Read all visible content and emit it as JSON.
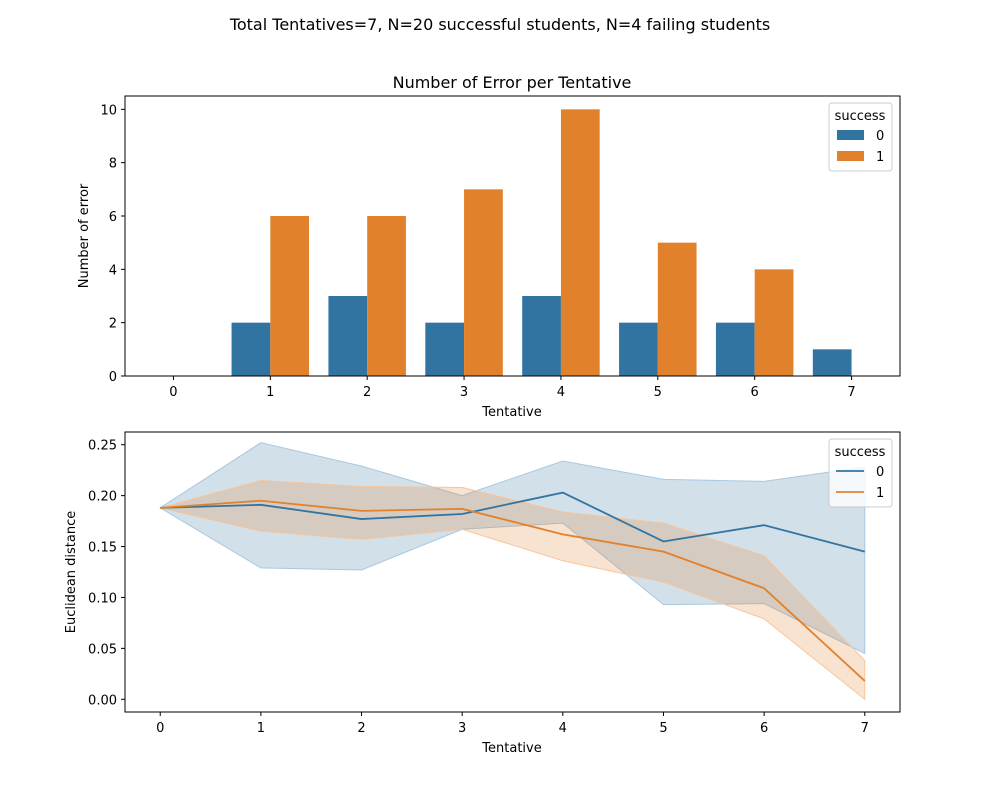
{
  "suptitle": "Total Tentatives=7, N=20 successful students, N=4 failing students",
  "colors": {
    "series_0": "#3274a1",
    "series_1": "#e1812c",
    "band_0": "#a8c8e1",
    "band_1": "#f8c59a"
  },
  "chart_data": [
    {
      "type": "bar",
      "title": "Number of Error per Tentative",
      "xlabel": "Tentative",
      "ylabel": "Number of error",
      "categories": [
        "0",
        "1",
        "2",
        "3",
        "4",
        "5",
        "6",
        "7"
      ],
      "ylim": [
        0,
        10.5
      ],
      "yticks": [
        0,
        2,
        4,
        6,
        8,
        10
      ],
      "legend": {
        "title": "success",
        "position": "top-right"
      },
      "series": [
        {
          "name": "0",
          "values": [
            0,
            2,
            3,
            2,
            3,
            2,
            2,
            1
          ]
        },
        {
          "name": "1",
          "values": [
            0,
            6,
            6,
            7,
            10,
            5,
            4,
            0
          ]
        }
      ]
    },
    {
      "type": "line",
      "title": "",
      "xlabel": "Tentative",
      "ylabel": "Euclidean distance",
      "x": [
        0,
        1,
        2,
        3,
        4,
        5,
        6,
        7
      ],
      "xlim": [
        -0.35,
        7.35
      ],
      "ylim": [
        -0.0125,
        0.2625
      ],
      "yticks": [
        "0.00",
        "0.05",
        "0.10",
        "0.15",
        "0.20",
        "0.25"
      ],
      "legend": {
        "title": "success",
        "position": "top-right"
      },
      "series": [
        {
          "name": "0",
          "values": [
            0.188,
            0.191,
            0.177,
            0.182,
            0.203,
            0.155,
            0.171,
            0.145
          ],
          "ci_low": [
            0.188,
            0.129,
            0.127,
            0.167,
            0.173,
            0.093,
            0.094,
            0.045
          ],
          "ci_high": [
            0.188,
            0.252,
            0.229,
            0.2,
            0.234,
            0.216,
            0.214,
            0.228
          ]
        },
        {
          "name": "1",
          "values": [
            0.188,
            0.195,
            0.185,
            0.187,
            0.162,
            0.145,
            0.109,
            0.018
          ],
          "ci_low": [
            0.188,
            0.165,
            0.157,
            0.167,
            0.136,
            0.115,
            0.079,
            0.0
          ],
          "ci_high": [
            0.188,
            0.215,
            0.209,
            0.208,
            0.184,
            0.173,
            0.141,
            0.038
          ]
        }
      ]
    }
  ]
}
